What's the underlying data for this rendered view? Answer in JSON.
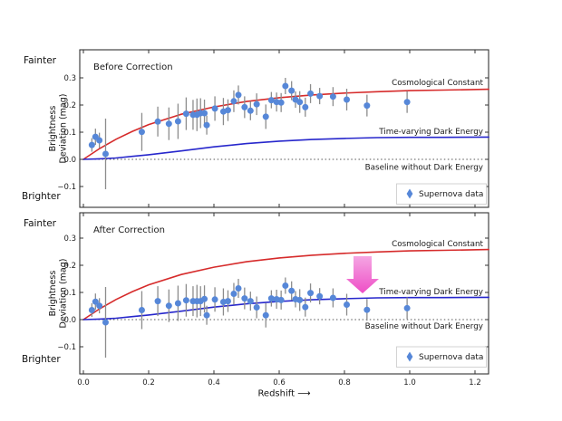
{
  "figure": {
    "fainter_label": "Fainter",
    "brighter_label": "Brighter",
    "ylabel_line1": "Brightness",
    "ylabel_line2": "Deviation (mag)",
    "xlabel": "Redshift ⟶"
  },
  "axes": {
    "x": {
      "values": [
        0.0,
        0.2,
        0.4,
        0.6,
        0.8,
        1.0,
        1.2
      ],
      "labels": [
        "0.0",
        "0.2",
        "0.4",
        "0.6",
        "0.8",
        "1.0",
        "1.2"
      ],
      "range": [
        -0.011,
        1.242
      ]
    },
    "y": {
      "values": [
        0.3,
        0.2,
        0.1,
        0.0,
        -0.1
      ],
      "labels": [
        "0.3",
        "0.2",
        "0.1",
        "0.0",
        "−0.1"
      ]
    }
  },
  "colors": {
    "supernova_point": "#5687d8",
    "error_bar": "#8c8c8c",
    "cosmological_constant": "#d62b2b",
    "time_varying": "#2727cc",
    "baseline_line": "#555555",
    "baseline_text": "#1a1a1a",
    "arrow_top": "#f5a6e3",
    "arrow_bottom": "#ee4ec6"
  },
  "chart_data": [
    {
      "type": "scatter",
      "title": "Before Correction",
      "xlabel": "Redshift",
      "ylabel": "Brightness Deviation (mag)",
      "xlim": [
        -0.011,
        1.242
      ],
      "ylim": [
        -0.177,
        0.403
      ],
      "xticks": [
        0.0,
        0.2,
        0.4,
        0.6,
        0.8,
        1.0,
        1.2
      ],
      "yticks": [
        0.3,
        0.2,
        0.1,
        0.0,
        -0.1
      ],
      "grid": false,
      "legend_position": "lower right",
      "labels": {
        "red": "Cosmological Constant",
        "blue": "Time-varying Dark Energy",
        "baseline": "Baseline without Dark Energy",
        "legend": "Supernova data"
      },
      "curves": {
        "x": [
          0,
          0.05,
          0.1,
          0.15,
          0.2,
          0.3,
          0.4,
          0.5,
          0.6,
          0.7,
          0.8,
          0.9,
          1.0,
          1.1,
          1.242
        ],
        "cosmological_constant": [
          0,
          0.04,
          0.074,
          0.103,
          0.128,
          0.166,
          0.193,
          0.213,
          0.227,
          0.237,
          0.244,
          0.249,
          0.253,
          0.255,
          0.258
        ],
        "time_varying_dark_energy": [
          0,
          0.002,
          0.005,
          0.011,
          0.017,
          0.031,
          0.046,
          0.058,
          0.067,
          0.073,
          0.077,
          0.08,
          0.081,
          0.081,
          0.082
        ],
        "baseline_y": 0
      },
      "supernovae_xyerr": [
        [
          0.026,
          0.053,
          0.025
        ],
        [
          0.037,
          0.083,
          0.03
        ],
        [
          0.049,
          0.07,
          0.028
        ],
        [
          0.068,
          0.02,
          0.13
        ],
        [
          0.179,
          0.101,
          0.07
        ],
        [
          0.228,
          0.139,
          0.055
        ],
        [
          0.262,
          0.131,
          0.06
        ],
        [
          0.29,
          0.14,
          0.065
        ],
        [
          0.315,
          0.168,
          0.06
        ],
        [
          0.336,
          0.164,
          0.055
        ],
        [
          0.348,
          0.164,
          0.06
        ],
        [
          0.359,
          0.17,
          0.055
        ],
        [
          0.371,
          0.17,
          0.05
        ],
        [
          0.378,
          0.126,
          0.035
        ],
        [
          0.403,
          0.187,
          0.045
        ],
        [
          0.429,
          0.176,
          0.05
        ],
        [
          0.443,
          0.181,
          0.04
        ],
        [
          0.461,
          0.214,
          0.04
        ],
        [
          0.475,
          0.237,
          0.035
        ],
        [
          0.494,
          0.192,
          0.04
        ],
        [
          0.512,
          0.179,
          0.035
        ],
        [
          0.531,
          0.203,
          0.04
        ],
        [
          0.559,
          0.157,
          0.045
        ],
        [
          0.576,
          0.218,
          0.03
        ],
        [
          0.592,
          0.211,
          0.035
        ],
        [
          0.606,
          0.209,
          0.035
        ],
        [
          0.619,
          0.27,
          0.03
        ],
        [
          0.638,
          0.253,
          0.035
        ],
        [
          0.65,
          0.22,
          0.03
        ],
        [
          0.663,
          0.211,
          0.04
        ],
        [
          0.68,
          0.192,
          0.035
        ],
        [
          0.696,
          0.242,
          0.035
        ],
        [
          0.724,
          0.233,
          0.03
        ],
        [
          0.765,
          0.231,
          0.035
        ],
        [
          0.807,
          0.22,
          0.04
        ],
        [
          0.869,
          0.198,
          0.04
        ],
        [
          0.992,
          0.211,
          0.04
        ]
      ]
    },
    {
      "type": "scatter",
      "title": "After Correction",
      "xlabel": "Redshift",
      "ylabel": "Brightness Deviation (mag)",
      "xlim": [
        -0.011,
        1.242
      ],
      "ylim": [
        -0.2,
        0.393
      ],
      "xticks": [
        0.0,
        0.2,
        0.4,
        0.6,
        0.8,
        1.0,
        1.2
      ],
      "yticks": [
        0.3,
        0.2,
        0.1,
        0.0,
        -0.1
      ],
      "grid": false,
      "legend_position": "lower right",
      "labels": {
        "red": "Cosmological Constant",
        "blue": "Time-varying Dark Energy",
        "baseline": "Baseline without Dark Energy",
        "legend": "Supernova data"
      },
      "curves": {
        "x": [
          0,
          0.05,
          0.1,
          0.15,
          0.2,
          0.3,
          0.4,
          0.5,
          0.6,
          0.7,
          0.8,
          0.9,
          1.0,
          1.1,
          1.242
        ],
        "cosmological_constant": [
          0,
          0.04,
          0.074,
          0.103,
          0.128,
          0.166,
          0.193,
          0.213,
          0.227,
          0.237,
          0.244,
          0.249,
          0.253,
          0.255,
          0.258
        ],
        "time_varying_dark_energy": [
          0,
          0.002,
          0.005,
          0.011,
          0.017,
          0.031,
          0.046,
          0.058,
          0.067,
          0.073,
          0.077,
          0.08,
          0.081,
          0.081,
          0.082
        ],
        "baseline_y": 0
      },
      "arrow": {
        "x": 0.856,
        "y_from": 0.235,
        "y_to": 0.1
      },
      "supernovae_xyerr": [
        [
          0.026,
          0.035,
          0.025
        ],
        [
          0.037,
          0.066,
          0.03
        ],
        [
          0.049,
          0.051,
          0.028
        ],
        [
          0.068,
          -0.01,
          0.13
        ],
        [
          0.179,
          0.035,
          0.07
        ],
        [
          0.228,
          0.068,
          0.055
        ],
        [
          0.262,
          0.051,
          0.06
        ],
        [
          0.29,
          0.06,
          0.065
        ],
        [
          0.315,
          0.071,
          0.06
        ],
        [
          0.336,
          0.068,
          0.055
        ],
        [
          0.348,
          0.068,
          0.06
        ],
        [
          0.359,
          0.068,
          0.055
        ],
        [
          0.371,
          0.076,
          0.05
        ],
        [
          0.378,
          0.016,
          0.035
        ],
        [
          0.403,
          0.074,
          0.045
        ],
        [
          0.429,
          0.065,
          0.05
        ],
        [
          0.443,
          0.068,
          0.04
        ],
        [
          0.461,
          0.095,
          0.04
        ],
        [
          0.475,
          0.115,
          0.035
        ],
        [
          0.494,
          0.078,
          0.04
        ],
        [
          0.512,
          0.068,
          0.035
        ],
        [
          0.531,
          0.045,
          0.04
        ],
        [
          0.559,
          0.016,
          0.045
        ],
        [
          0.576,
          0.078,
          0.03
        ],
        [
          0.592,
          0.075,
          0.035
        ],
        [
          0.606,
          0.072,
          0.035
        ],
        [
          0.619,
          0.125,
          0.03
        ],
        [
          0.638,
          0.106,
          0.035
        ],
        [
          0.65,
          0.075,
          0.03
        ],
        [
          0.663,
          0.072,
          0.04
        ],
        [
          0.68,
          0.046,
          0.035
        ],
        [
          0.696,
          0.098,
          0.035
        ],
        [
          0.724,
          0.086,
          0.03
        ],
        [
          0.765,
          0.08,
          0.035
        ],
        [
          0.807,
          0.055,
          0.04
        ],
        [
          0.869,
          0.036,
          0.04
        ],
        [
          0.992,
          0.042,
          0.04
        ]
      ]
    }
  ]
}
